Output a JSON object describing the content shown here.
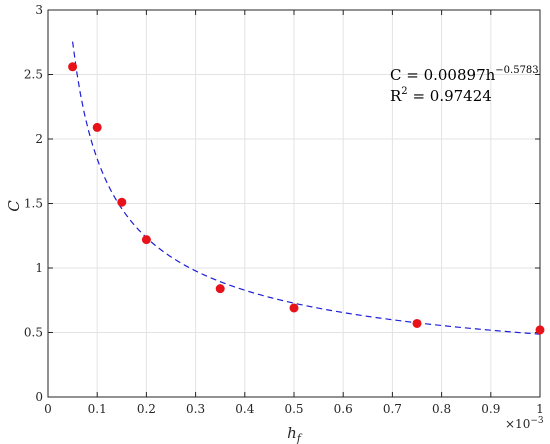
{
  "chart_data": {
    "type": "scatter",
    "xlabel": "h",
    "xlabel_subscript": "f",
    "ylabel": "C",
    "x_exponent_base": "×10",
    "x_exponent_power": "−3",
    "xlim": [
      0,
      1
    ],
    "ylim": [
      0,
      3
    ],
    "x_ticks": [
      0,
      0.1,
      0.2,
      0.3,
      0.4,
      0.5,
      0.6,
      0.7,
      0.8,
      0.9,
      1
    ],
    "y_ticks": [
      0,
      0.5,
      1,
      1.5,
      2,
      2.5,
      3
    ],
    "x_tick_labels": [
      "0",
      "0.1",
      "0.2",
      "0.3",
      "0.4",
      "0.5",
      "0.6",
      "0.7",
      "0.8",
      "0.9",
      "1"
    ],
    "y_tick_labels": [
      "0",
      "0.5",
      "1",
      "1.5",
      "2",
      "2.5",
      "3"
    ],
    "grid": true,
    "series": [
      {
        "kind": "points",
        "color": "#e8121b",
        "points": [
          {
            "x": 0.05,
            "y": 2.56
          },
          {
            "x": 0.1,
            "y": 2.09
          },
          {
            "x": 0.15,
            "y": 1.51
          },
          {
            "x": 0.2,
            "y": 1.22
          },
          {
            "x": 0.35,
            "y": 0.84
          },
          {
            "x": 0.5,
            "y": 0.69
          },
          {
            "x": 0.75,
            "y": 0.57
          },
          {
            "x": 1.0,
            "y": 0.52
          }
        ]
      },
      {
        "kind": "fit",
        "style": "dashed",
        "color": "#1f1fd6",
        "coefficient": 0.00897,
        "exponent": -0.5783,
        "x_scale": 0.001,
        "domain": [
          0.05,
          1.0
        ]
      }
    ],
    "annotation": {
      "line1_lhs": "C = 0.00897h",
      "line1_exp": "−0.5783",
      "line2_lhs": "R",
      "line2_sup": "2",
      "line2_rhs": " = 0.97424"
    }
  }
}
